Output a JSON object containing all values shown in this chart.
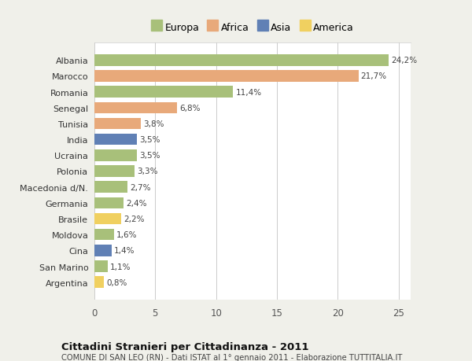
{
  "categories": [
    "Albania",
    "Marocco",
    "Romania",
    "Senegal",
    "Tunisia",
    "India",
    "Ucraina",
    "Polonia",
    "Macedonia d/N.",
    "Germania",
    "Brasile",
    "Moldova",
    "Cina",
    "San Marino",
    "Argentina"
  ],
  "values": [
    24.2,
    21.7,
    11.4,
    6.8,
    3.8,
    3.5,
    3.5,
    3.3,
    2.7,
    2.4,
    2.2,
    1.6,
    1.4,
    1.1,
    0.8
  ],
  "labels": [
    "24,2%",
    "21,7%",
    "11,4%",
    "6,8%",
    "3,8%",
    "3,5%",
    "3,5%",
    "3,3%",
    "2,7%",
    "2,4%",
    "2,2%",
    "1,6%",
    "1,4%",
    "1,1%",
    "0,8%"
  ],
  "continents": [
    "Europa",
    "Africa",
    "Europa",
    "Africa",
    "Africa",
    "Asia",
    "Europa",
    "Europa",
    "Europa",
    "Europa",
    "America",
    "Europa",
    "Asia",
    "Europa",
    "America"
  ],
  "colors": {
    "Europa": "#a8c07a",
    "Africa": "#e8a97a",
    "Asia": "#6080b5",
    "America": "#f0d060"
  },
  "legend_order": [
    "Europa",
    "Africa",
    "Asia",
    "America"
  ],
  "title": "Cittadini Stranieri per Cittadinanza - 2011",
  "subtitle": "COMUNE DI SAN LEO (RN) - Dati ISTAT al 1° gennaio 2011 - Elaborazione TUTTITALIA.IT",
  "xlim": [
    0,
    26
  ],
  "xticks": [
    0,
    5,
    10,
    15,
    20,
    25
  ],
  "background_color": "#f0f0ea",
  "bar_background": "#ffffff",
  "grid_color": "#cccccc"
}
